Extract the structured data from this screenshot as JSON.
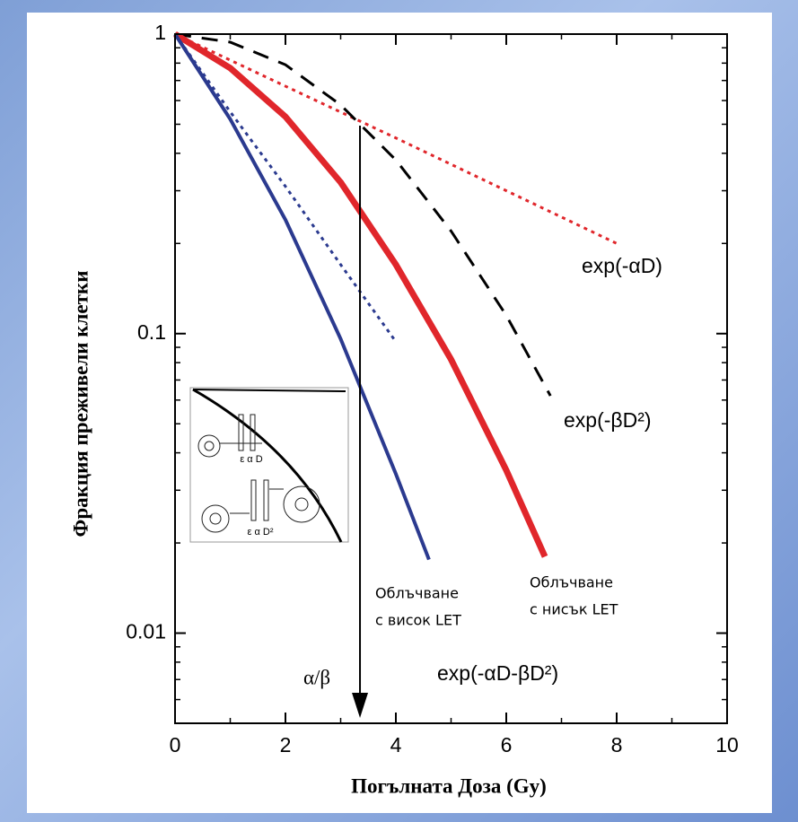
{
  "chart_data": {
    "type": "line",
    "log_y": true,
    "x_label": "Погълната Доза (Gy)",
    "y_label": "Фракция преживели клетки",
    "xlim": [
      0,
      10
    ],
    "xticks": [
      0,
      2,
      4,
      6,
      8,
      10
    ],
    "xminor": [
      1,
      3,
      5,
      7,
      9
    ],
    "ylim": [
      0.005,
      1
    ],
    "yticks": [
      1,
      0.1,
      0.01
    ],
    "yminor": [
      0.006,
      0.007,
      0.008,
      0.009,
      0.02,
      0.03,
      0.04,
      0.05,
      0.06,
      0.07,
      0.08,
      0.09,
      0.2,
      0.3,
      0.4,
      0.5,
      0.6,
      0.7,
      0.8,
      0.9
    ],
    "series": [
      {
        "color": "#e0262b",
        "style": "dotted",
        "width": 3,
        "x": [
          0,
          2,
          4,
          6,
          8
        ],
        "values": [
          1,
          0.67,
          0.45,
          0.3,
          0.2
        ]
      },
      {
        "color": "#000000",
        "style": "dashed",
        "width": 3,
        "x": [
          0,
          1,
          2,
          3,
          4,
          5,
          6,
          6.8
        ],
        "values": [
          1,
          0.94,
          0.79,
          0.58,
          0.38,
          0.22,
          0.115,
          0.062
        ]
      },
      {
        "color": "#e0262b",
        "style": "solid",
        "width": 7,
        "x": [
          0,
          1,
          2,
          3,
          4,
          5,
          6,
          6.7
        ],
        "values": [
          1,
          0.77,
          0.53,
          0.32,
          0.17,
          0.082,
          0.035,
          0.018
        ]
      },
      {
        "color": "#2b3a8f",
        "style": "solid",
        "width": 4,
        "x": [
          0,
          1,
          2,
          3,
          4,
          4.6
        ],
        "values": [
          1,
          0.52,
          0.24,
          0.096,
          0.034,
          0.0176
        ]
      },
      {
        "color": "#2b3a8f",
        "style": "dotted",
        "width": 3,
        "x": [
          0,
          1,
          2,
          3,
          4
        ],
        "values": [
          1,
          0.55,
          0.31,
          0.17,
          0.094
        ]
      }
    ],
    "arrow": {
      "label": "α/β",
      "x": 3.35
    },
    "annotations": [
      {
        "lines": [
          "exp(-αD)"
        ]
      },
      {
        "lines": [
          "exp(-βD²)"
        ]
      },
      {
        "lines": [
          "exp(-αD-βD²)"
        ]
      },
      {
        "lines": [
          "Облъчване",
          "с висок LET"
        ]
      },
      {
        "lines": [
          "Облъчване",
          "с нисък LET"
        ]
      }
    ],
    "inset": {
      "labels": [
        "ε α D",
        "ε α D²"
      ]
    }
  }
}
